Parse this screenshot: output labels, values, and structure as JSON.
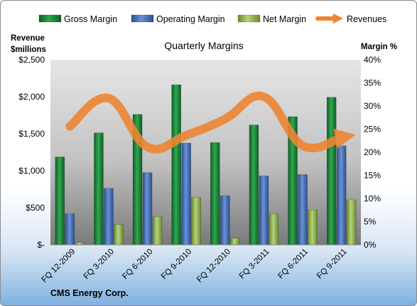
{
  "chart_data": {
    "type": "bar",
    "title": "Quarterly Margins",
    "ylabel_left": [
      "Revenue",
      "$millions"
    ],
    "ylabel_right": "Margin %",
    "footer": "CMS Energy Corp.",
    "categories": [
      "FQ 12-2009",
      "FQ 3-2010",
      "FQ 6-2010",
      "FQ 9-2010",
      "FQ 12-2010",
      "FQ 3-2011",
      "FQ 6-2011",
      "FQ 9-2011"
    ],
    "left_axis": {
      "min": 0,
      "max": 2500,
      "step": 500,
      "ticks": [
        "$-",
        "$500",
        "$1,000",
        "$1,500",
        "$2,000",
        "$2,500"
      ]
    },
    "right_axis": {
      "min": 0,
      "max": 40,
      "step": 5,
      "ticks": [
        "0%",
        "5%",
        "10%",
        "15%",
        "20%",
        "25%",
        "30%",
        "35%",
        "40%"
      ]
    },
    "series": [
      {
        "name": "Gross Margin",
        "axis": "right",
        "color": "#1e8c3c",
        "values": [
          19.0,
          24.2,
          28.2,
          34.6,
          22.1,
          25.9,
          27.7,
          31.9
        ]
      },
      {
        "name": "Operating Margin",
        "axis": "right",
        "color": "#4a72b8",
        "values": [
          6.7,
          12.2,
          15.6,
          22.0,
          10.6,
          14.9,
          15.2,
          21.4
        ]
      },
      {
        "name": "Net Margin",
        "axis": "right",
        "color": "#9bbb59",
        "values": [
          0.5,
          4.4,
          6.1,
          10.2,
          1.4,
          6.7,
          7.5,
          9.7
        ]
      }
    ],
    "line_series": {
      "name": "Revenues",
      "axis": "left",
      "color": "#ed8533",
      "values": [
        1600,
        1980,
        1320,
        1480,
        1700,
        2000,
        1340,
        1450
      ]
    },
    "legend_position": "top",
    "grid": false
  }
}
